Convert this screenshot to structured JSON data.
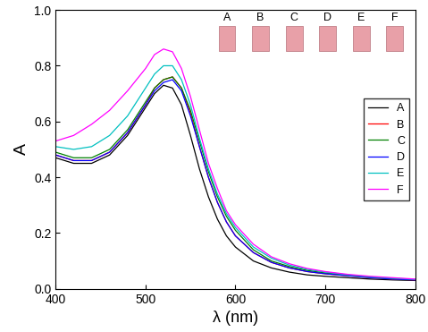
{
  "chart_data": {
    "type": "line",
    "x_label": "λ (nm)",
    "y_label": "A",
    "x": [
      400,
      420,
      440,
      460,
      480,
      500,
      510,
      520,
      530,
      540,
      550,
      560,
      570,
      580,
      590,
      600,
      620,
      640,
      660,
      680,
      700,
      725,
      750,
      775,
      800
    ],
    "series": [
      {
        "name": "A",
        "color": "#000000",
        "values": [
          0.47,
          0.45,
          0.45,
          0.48,
          0.55,
          0.65,
          0.7,
          0.73,
          0.72,
          0.66,
          0.55,
          0.43,
          0.33,
          0.25,
          0.19,
          0.15,
          0.1,
          0.075,
          0.06,
          0.05,
          0.045,
          0.04,
          0.035,
          0.032,
          0.03
        ]
      },
      {
        "name": "B",
        "color": "#ff0000",
        "values": [
          0.48,
          0.46,
          0.46,
          0.49,
          0.56,
          0.66,
          0.72,
          0.75,
          0.76,
          0.72,
          0.63,
          0.51,
          0.4,
          0.31,
          0.24,
          0.19,
          0.13,
          0.095,
          0.075,
          0.062,
          0.054,
          0.047,
          0.04,
          0.035,
          0.032
        ]
      },
      {
        "name": "C",
        "color": "#008000",
        "values": [
          0.49,
          0.47,
          0.47,
          0.5,
          0.57,
          0.67,
          0.72,
          0.75,
          0.76,
          0.72,
          0.64,
          0.53,
          0.42,
          0.33,
          0.26,
          0.21,
          0.14,
          0.1,
          0.08,
          0.066,
          0.057,
          0.049,
          0.042,
          0.037,
          0.033
        ]
      },
      {
        "name": "D",
        "color": "#0000ff",
        "values": [
          0.48,
          0.46,
          0.46,
          0.49,
          0.56,
          0.66,
          0.71,
          0.74,
          0.75,
          0.71,
          0.62,
          0.51,
          0.4,
          0.31,
          0.24,
          0.19,
          0.13,
          0.095,
          0.075,
          0.062,
          0.054,
          0.047,
          0.04,
          0.035,
          0.032
        ]
      },
      {
        "name": "E",
        "color": "#00c0c0",
        "values": [
          0.51,
          0.5,
          0.51,
          0.55,
          0.62,
          0.72,
          0.77,
          0.8,
          0.8,
          0.75,
          0.66,
          0.54,
          0.43,
          0.34,
          0.27,
          0.22,
          0.15,
          0.11,
          0.085,
          0.07,
          0.06,
          0.05,
          0.043,
          0.038,
          0.034
        ]
      },
      {
        "name": "F",
        "color": "#ff00ff",
        "values": [
          0.53,
          0.55,
          0.59,
          0.64,
          0.71,
          0.79,
          0.84,
          0.86,
          0.85,
          0.79,
          0.69,
          0.57,
          0.45,
          0.36,
          0.28,
          0.23,
          0.16,
          0.115,
          0.09,
          0.073,
          0.062,
          0.052,
          0.045,
          0.04,
          0.035
        ]
      }
    ],
    "xlim": [
      400,
      800
    ],
    "xticks": [
      400,
      500,
      600,
      700,
      800
    ],
    "ylim": [
      0.0,
      1.0
    ],
    "yticks": [
      0.0,
      0.2,
      0.4,
      0.6,
      0.8,
      1.0
    ],
    "legend": "center right",
    "grid": false
  }
}
